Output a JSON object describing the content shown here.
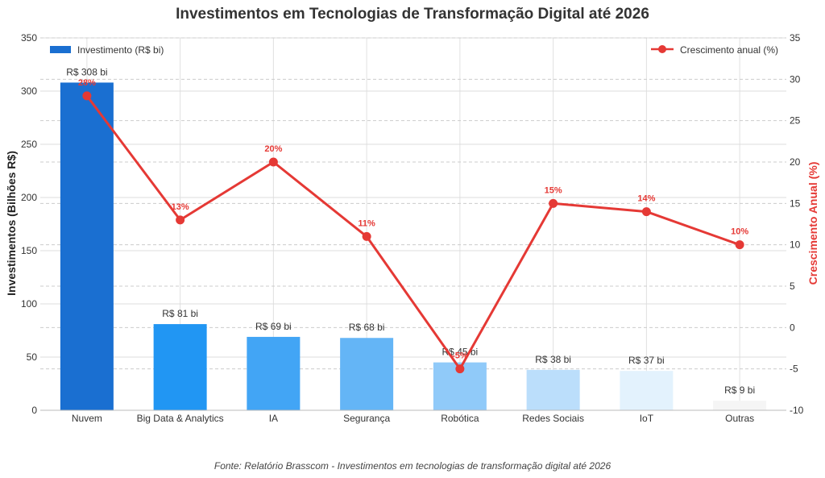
{
  "chart_data": {
    "type": "bar",
    "title": "Investimentos em Tecnologias de Transformação Digital até 2026",
    "categories": [
      "Nuvem",
      "Big Data & Analytics",
      "IA",
      "Segurança",
      "Robótica",
      "Redes Sociais",
      "IoT",
      "Outras"
    ],
    "series": [
      {
        "name": "Investimento (R$ bi)",
        "type": "bar",
        "axis": "left",
        "values": [
          308,
          81,
          69,
          68,
          45,
          38,
          37,
          9
        ],
        "labels": [
          "R$ 308 bi",
          "R$ 81 bi",
          "R$ 69 bi",
          "R$ 68 bi",
          "R$ 45 bi",
          "R$ 38 bi",
          "R$ 37 bi",
          "R$ 9 bi"
        ],
        "colors": [
          "#1a6fd1",
          "#2196f3",
          "#42a5f5",
          "#64b5f6",
          "#90caf9",
          "#bbdefb",
          "#e3f2fd",
          "#f5f5f5"
        ]
      },
      {
        "name": "Crescimento anual (%)",
        "type": "line",
        "axis": "right",
        "values": [
          28,
          13,
          20,
          11,
          -5,
          15,
          14,
          10
        ],
        "labels": [
          "28%",
          "13%",
          "20%",
          "11%",
          "-5%",
          "15%",
          "14%",
          "10%"
        ],
        "color": "#e53935"
      }
    ],
    "ylabel": "Investimentos (Bilhões R$)",
    "ylabel_right": "Crescimento Anual (%)",
    "ylim": [
      0,
      350
    ],
    "yticks": [
      0,
      50,
      100,
      150,
      200,
      250,
      300,
      350
    ],
    "ylim_right": [
      -10,
      35
    ],
    "yticks_right": [
      -10,
      -5,
      0,
      5,
      10,
      15,
      20,
      25,
      30,
      35
    ],
    "grid": true,
    "legend": {
      "bar": "top-left",
      "line": "top-right"
    },
    "source": "Fonte: Relatório Brasscom - Investimentos em tecnologias de transformação digital até 2026"
  }
}
